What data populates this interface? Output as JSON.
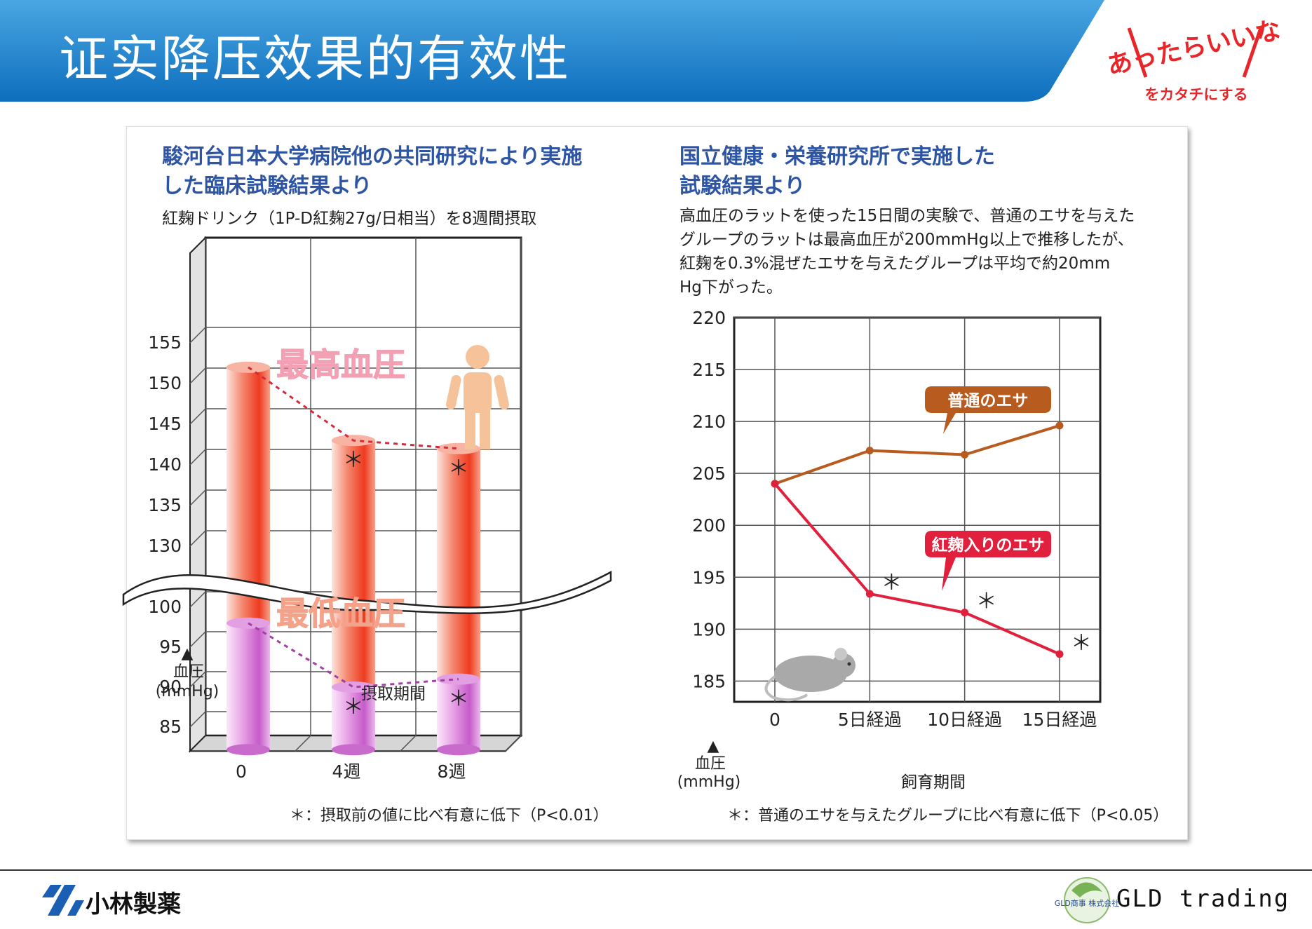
{
  "slide": {
    "title": "证实降压效果的有效性"
  },
  "logos": {
    "top_right_main": "あったらいいな",
    "top_right_sub": "をカタチにする",
    "bottom_left": "小林製薬",
    "bottom_right_badge": "GLD商事 株式会社",
    "bottom_right": "GLD trading"
  },
  "left_panel": {
    "heading_line1": "駿河台日本大学病院他の共同研究により実施",
    "heading_line2": "した臨床試験結果より",
    "subheading": "紅麹ドリンク（1P-D紅麹27g/日相当）を8週間摂取",
    "footnote": "＊：摂取前の値に比べ有意に低下（P<0.01）"
  },
  "right_panel": {
    "heading_line1": "国立健康・栄養研究所で実施した",
    "heading_line2": "試験結果より",
    "desc_line1": "高血圧のラットを使った15日間の実験で、普通のエサを与えた",
    "desc_line2": "グループのラットは最高血圧が200mmHg以上で推移したが、",
    "desc_line3": "紅麹を0.3%混ぜたエサを与えたグループは平均で約20mm",
    "desc_line4": "Hg下がった。",
    "footnote": "＊：普通のエサを与えたグループに比べ有意に低下（P<0.05）"
  },
  "chart_data": [
    {
      "type": "bar",
      "categories": [
        "0",
        "4週",
        "8週"
      ],
      "xlabel": "摂取期間",
      "ylabel": "血圧\n(mmHg)",
      "ylabel_line1": "血圧",
      "ylabel_line2": "(mmHg)",
      "axis_break": [
        100,
        130
      ],
      "yticks_upper": [
        130,
        135,
        140,
        145,
        150,
        155
      ],
      "yticks_lower": [
        85,
        90,
        95,
        100
      ],
      "grid": true,
      "series": [
        {
          "name": "最高血圧",
          "values": [
            152,
            143,
            142
          ],
          "significant": [
            false,
            true,
            true
          ],
          "color": "#f0553a"
        },
        {
          "name": "最低血圧",
          "values": [
            98,
            90,
            91
          ],
          "significant": [
            false,
            true,
            true
          ],
          "color": "#c66ad0"
        }
      ],
      "significance_marker": "＊"
    },
    {
      "type": "line",
      "x": [
        "0",
        "5日経過",
        "10日経過",
        "15日経過"
      ],
      "xlabel": "飼育期間",
      "ylabel_line1": "血圧",
      "ylabel_line2": "(mmHg)",
      "ylim": [
        183,
        220
      ],
      "yticks": [
        185,
        190,
        195,
        200,
        205,
        210,
        215,
        220
      ],
      "grid": true,
      "series": [
        {
          "name": "普通のエサ",
          "values": [
            204,
            207.2,
            206.8,
            209.6
          ],
          "color": "#b85b1e",
          "significant": [
            false,
            false,
            false,
            false
          ]
        },
        {
          "name": "紅麹入りのエサ",
          "values": [
            204,
            193.4,
            191.6,
            187.6
          ],
          "color": "#e0203c",
          "significant": [
            false,
            true,
            true,
            true
          ]
        }
      ],
      "significance_marker": "＊"
    }
  ]
}
